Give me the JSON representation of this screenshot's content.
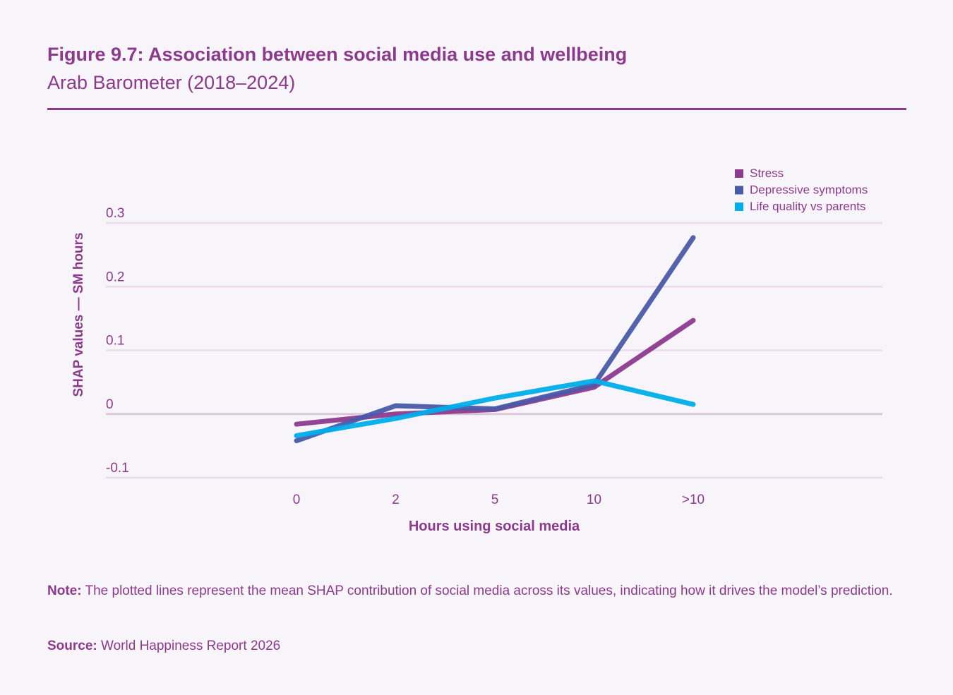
{
  "header": {
    "title": "Figure 9.7: Association between social media use and wellbeing",
    "subtitle": "Arab Barometer (2018–2024)"
  },
  "chart_data": {
    "type": "line",
    "xlabel": "Hours using social media",
    "ylabel": "SHAP values — SM hours",
    "categories": [
      "0",
      "2",
      "5",
      "10",
      ">10"
    ],
    "ylim": [
      -0.1,
      0.3
    ],
    "yticks": [
      0.3,
      0.2,
      0.1,
      0,
      -0.1
    ],
    "ytick_labels": [
      "0.3",
      "0.2",
      "0.1",
      "0",
      "-0.1"
    ],
    "grid": true,
    "legend_position": "top-right",
    "series": [
      {
        "name": "Stress",
        "color": "#8e3a8e",
        "values": [
          -0.016,
          0.0,
          0.007,
          0.042,
          0.147
        ]
      },
      {
        "name": "Depressive symptoms",
        "color": "#4a5aa8",
        "values": [
          -0.042,
          0.013,
          0.008,
          0.046,
          0.277
        ]
      },
      {
        "name": "Life quality vs parents",
        "color": "#00aeea",
        "values": [
          -0.034,
          -0.007,
          0.025,
          0.052,
          0.015
        ]
      }
    ]
  },
  "footer": {
    "note_label": "Note:",
    "note_text": " The plotted lines represent the mean SHAP contribution of social media across its values, indicating how it drives the model’s prediction.",
    "source_label": "Source:",
    "source_text": " World Happiness Report 2026"
  }
}
